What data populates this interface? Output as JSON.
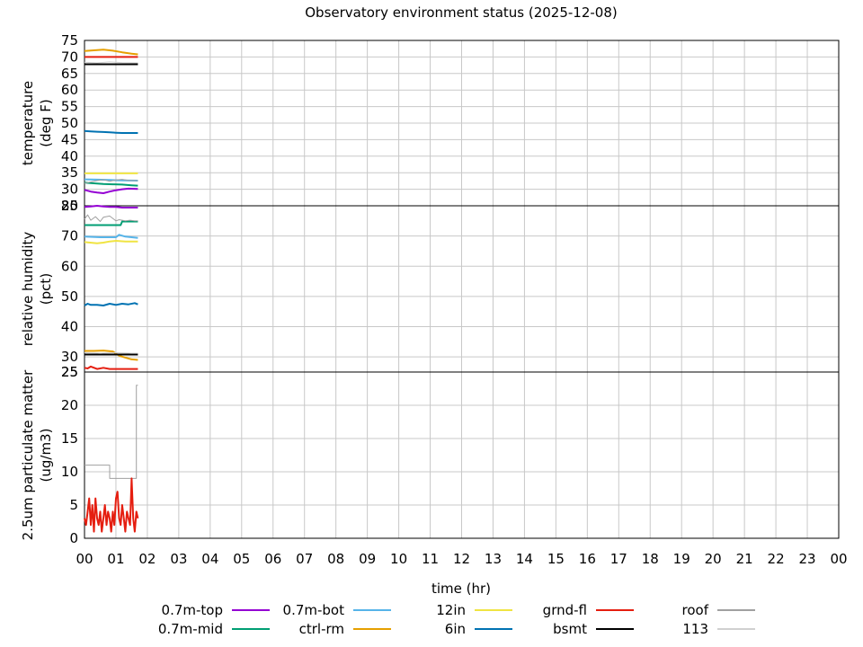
{
  "chart_data": {
    "title": "Observatory environment status (2025-12-08)",
    "xlabel": "time (hr)",
    "x_ticks": [
      "00",
      "01",
      "02",
      "03",
      "04",
      "05",
      "06",
      "07",
      "08",
      "09",
      "10",
      "11",
      "12",
      "13",
      "14",
      "15",
      "16",
      "17",
      "18",
      "19",
      "20",
      "21",
      "22",
      "23",
      "00"
    ],
    "xlim": [
      0,
      24
    ],
    "grid": true,
    "legend_position": "bottom",
    "legend": [
      {
        "name": "0.7m-top",
        "color": "#9400d3"
      },
      {
        "name": "0.7m-mid",
        "color": "#009e73"
      },
      {
        "name": "0.7m-bot",
        "color": "#56b4e9"
      },
      {
        "name": "ctrl-rm",
        "color": "#e69f00"
      },
      {
        "name": "12in",
        "color": "#f0e442"
      },
      {
        "name": "6in",
        "color": "#0072b2"
      },
      {
        "name": "grnd-fl",
        "color": "#e51e10"
      },
      {
        "name": "bsmt",
        "color": "#000000"
      },
      {
        "name": "roof",
        "color": "#a0a0a0"
      },
      {
        "name": "113",
        "color": "#d0d0d0"
      }
    ],
    "panels": [
      {
        "type": "line",
        "ylabel_line1": "temperature",
        "ylabel_line2": "(deg F)",
        "ylim": [
          25,
          75
        ],
        "y_ticks": [
          25,
          30,
          35,
          40,
          45,
          50,
          55,
          60,
          65,
          70,
          75
        ],
        "series": [
          {
            "name": "0.7m-top",
            "color": "#9400d3",
            "width": 2,
            "x": [
              0,
              0.2,
              0.4,
              0.6,
              0.8,
              1.0,
              1.2,
              1.4,
              1.7
            ],
            "y": [
              29.8,
              29.3,
              29.0,
              28.8,
              29.3,
              29.7,
              30.0,
              30.2,
              30.1
            ]
          },
          {
            "name": "0.7m-mid",
            "color": "#009e73",
            "width": 2,
            "x": [
              0,
              0.3,
              0.6,
              0.9,
              1.2,
              1.5,
              1.7
            ],
            "y": [
              32.0,
              31.8,
              31.6,
              31.5,
              31.4,
              31.2,
              31.1
            ]
          },
          {
            "name": "0.7m-bot",
            "color": "#56b4e9",
            "width": 2,
            "x": [
              0,
              0.4,
              0.8,
              1.2,
              1.7
            ],
            "y": [
              33.0,
              32.9,
              32.8,
              32.7,
              32.6
            ]
          },
          {
            "name": "ctrl-rm",
            "color": "#e69f00",
            "width": 2,
            "x": [
              0,
              0.3,
              0.6,
              0.9,
              1.2,
              1.5,
              1.7
            ],
            "y": [
              71.8,
              72.0,
              72.2,
              71.9,
              71.4,
              71.0,
              70.8
            ]
          },
          {
            "name": "12in",
            "color": "#f0e442",
            "width": 2,
            "x": [
              0,
              0.8,
              1.7
            ],
            "y": [
              34.8,
              34.8,
              34.8
            ]
          },
          {
            "name": "6in",
            "color": "#0072b2",
            "width": 2,
            "x": [
              0,
              0.2,
              0.4,
              0.6,
              0.8,
              1.0,
              1.2,
              1.4,
              1.7
            ],
            "y": [
              47.6,
              47.5,
              47.4,
              47.3,
              47.2,
              47.1,
              47.0,
              47.0,
              47.0
            ]
          },
          {
            "name": "grnd-fl",
            "color": "#e51e10",
            "width": 2,
            "x": [
              0,
              0.8,
              1.7
            ],
            "y": [
              70.0,
              70.0,
              70.0
            ]
          },
          {
            "name": "bsmt",
            "color": "#000000",
            "width": 2,
            "x": [
              0,
              0.8,
              1.7
            ],
            "y": [
              67.8,
              67.8,
              67.8
            ]
          },
          {
            "name": "roof",
            "color": "#a0a0a0",
            "width": 1,
            "x": [
              0,
              0.2,
              0.4,
              0.6,
              0.8,
              1.0,
              1.2,
              1.4,
              1.7
            ],
            "y": [
              31.8,
              32.2,
              32.6,
              32.9,
              32.4,
              32.8,
              33.0,
              32.7,
              32.6
            ]
          },
          {
            "name": "113",
            "color": "#d0d0d0",
            "width": 1,
            "x": [
              0,
              0.4,
              0.8,
              1.2,
              1.7
            ],
            "y": [
              68.4,
              68.2,
              68.5,
              68.3,
              68.2
            ]
          }
        ]
      },
      {
        "type": "line",
        "ylabel_line1": "relative humidity",
        "ylabel_line2": "(pct)",
        "ylim": [
          25,
          80
        ],
        "y_ticks": [
          25,
          30,
          40,
          50,
          60,
          70,
          80
        ],
        "series": [
          {
            "name": "0.7m-top",
            "color": "#9400d3",
            "width": 2,
            "x": [
              0,
              0.2,
              0.4,
              0.6,
              0.8,
              1.0,
              1.2,
              1.4,
              1.7
            ],
            "y": [
              79.6,
              79.8,
              80.0,
              79.8,
              79.6,
              79.6,
              79.4,
              79.4,
              79.4
            ]
          },
          {
            "name": "0.7m-mid",
            "color": "#009e73",
            "width": 2,
            "x": [
              0,
              0.5,
              1.0,
              1.15,
              1.2,
              1.7
            ],
            "y": [
              73.6,
              73.6,
              73.6,
              73.6,
              74.8,
              74.8
            ]
          },
          {
            "name": "0.7m-bot",
            "color": "#56b4e9",
            "width": 2,
            "x": [
              0,
              0.5,
              1.0,
              1.1,
              1.3,
              1.7
            ],
            "y": [
              69.8,
              69.6,
              69.6,
              70.4,
              69.8,
              69.4
            ]
          },
          {
            "name": "ctrl-rm",
            "color": "#e69f00",
            "width": 2,
            "x": [
              0,
              0.3,
              0.6,
              0.9,
              1.1,
              1.3,
              1.5,
              1.7
            ],
            "y": [
              32.0,
              32.0,
              32.1,
              31.8,
              30.4,
              29.8,
              29.2,
              29.0
            ]
          },
          {
            "name": "12in",
            "color": "#f0e442",
            "width": 2,
            "x": [
              0,
              0.4,
              0.6,
              0.8,
              1.0,
              1.3,
              1.7
            ],
            "y": [
              68.0,
              67.6,
              67.8,
              68.2,
              68.4,
              68.2,
              68.2
            ]
          },
          {
            "name": "6in",
            "color": "#0072b2",
            "width": 2,
            "x": [
              0,
              0.1,
              0.2,
              0.4,
              0.6,
              0.8,
              1.0,
              1.2,
              1.4,
              1.6,
              1.7
            ],
            "y": [
              47.0,
              47.6,
              47.2,
              47.2,
              47.0,
              47.6,
              47.2,
              47.6,
              47.4,
              47.8,
              47.4
            ]
          },
          {
            "name": "grnd-fl",
            "color": "#e51e10",
            "width": 2,
            "x": [
              0,
              0.1,
              0.2,
              0.4,
              0.6,
              0.8,
              1.0,
              1.2,
              1.5,
              1.7
            ],
            "y": [
              26.4,
              26.2,
              26.8,
              26.0,
              26.4,
              26.0,
              26.0,
              26.0,
              26.0,
              26.0
            ]
          },
          {
            "name": "bsmt",
            "color": "#000000",
            "width": 2,
            "x": [
              0,
              0.5,
              1.0,
              1.5,
              1.7
            ],
            "y": [
              30.8,
              30.8,
              30.8,
              30.8,
              30.8
            ]
          },
          {
            "name": "roof",
            "color": "#a0a0a0",
            "width": 1,
            "x": [
              0,
              0.1,
              0.2,
              0.35,
              0.5,
              0.6,
              0.8,
              1.0,
              1.1,
              1.2,
              1.3,
              1.45,
              1.6,
              1.7
            ],
            "y": [
              75.6,
              77.0,
              75.2,
              76.4,
              74.8,
              76.2,
              76.6,
              75.0,
              75.4,
              75.2,
              75.0,
              75.2,
              75.0,
              75.0
            ]
          },
          {
            "name": "113",
            "color": "#d0d0d0",
            "width": 1,
            "x": [
              0,
              0.5,
              1.0,
              1.5,
              1.7
            ],
            "y": [
              31.4,
              31.2,
              31.4,
              31.2,
              31.2
            ]
          }
        ]
      },
      {
        "type": "line",
        "ylabel_line1": "2.5um particulate matter",
        "ylabel_line2": "(ug/m3)",
        "ylim": [
          0,
          25
        ],
        "y_ticks": [
          0,
          5,
          10,
          15,
          20,
          25
        ],
        "series": [
          {
            "name": "roof",
            "color": "#a0a0a0",
            "width": 1,
            "step": true,
            "x": [
              0,
              0.8,
              0.8,
              1.65,
              1.65,
              1.7
            ],
            "y": [
              11,
              11,
              9,
              9,
              23,
              23
            ]
          },
          {
            "name": "grnd-fl",
            "color": "#e51e10",
            "width": 2,
            "x": [
              0,
              0.05,
              0.1,
              0.15,
              0.2,
              0.25,
              0.3,
              0.35,
              0.4,
              0.45,
              0.5,
              0.55,
              0.6,
              0.65,
              0.7,
              0.75,
              0.8,
              0.85,
              0.9,
              0.95,
              1.0,
              1.05,
              1.1,
              1.15,
              1.2,
              1.25,
              1.3,
              1.35,
              1.4,
              1.45,
              1.5,
              1.55,
              1.6,
              1.65,
              1.7
            ],
            "y": [
              3,
              2,
              4,
              6,
              2,
              5,
              1,
              6,
              3,
              2,
              4,
              1,
              3,
              5,
              2,
              4,
              3,
              1,
              4,
              2,
              6,
              7,
              3,
              2,
              5,
              3,
              1,
              4,
              3,
              2,
              9,
              3,
              1,
              4,
              3
            ]
          }
        ]
      }
    ]
  }
}
